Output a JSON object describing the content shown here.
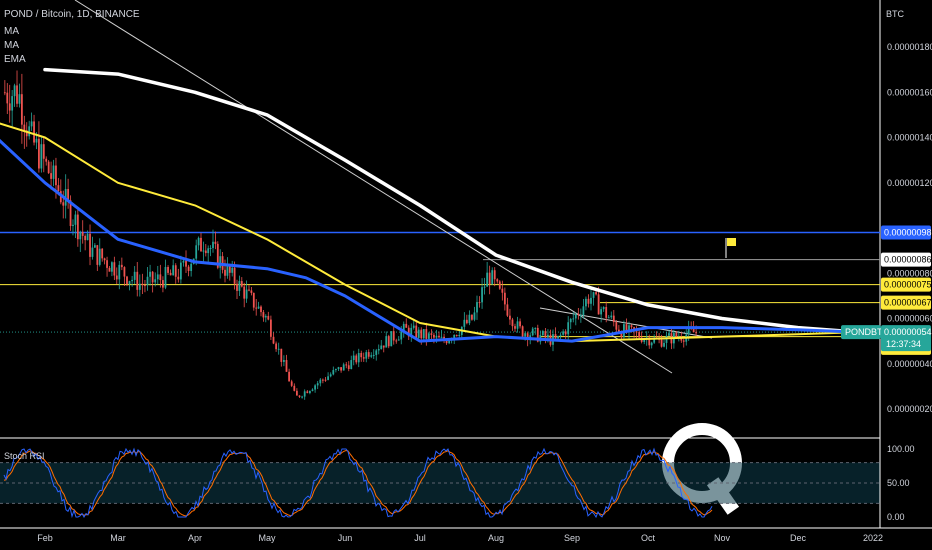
{
  "header": {
    "title": "POND / Bitcoin, 1D, BINANCE",
    "indicators": [
      "MA",
      "MA",
      "EMA"
    ],
    "currency": "BTC"
  },
  "watermark_letter": "Q",
  "colors": {
    "background": "#000000",
    "candle_up": "#26a69a",
    "candle_down": "#ef5350",
    "ma_white": "#ffffff",
    "ma_yellow": "#ffeb3b",
    "ema_blue": "#2962ff",
    "level_blue": "#2962ff",
    "level_yellow": "#ffeb3b",
    "stoch_k": "#2962ff",
    "stoch_d": "#ff6d00",
    "stoch_band": "#0d3c4a",
    "flag": "#ffeb3b"
  },
  "price_axis": {
    "ticks": [
      "0.00000180",
      "0.00000160",
      "0.00000140",
      "0.00000120",
      "0.00000080",
      "0.00000060",
      "0.00000040",
      "0.00000020"
    ],
    "tick_values": [
      1.8e-06,
      1.6e-06,
      1.4e-06,
      1.2e-06,
      8e-07,
      6e-07,
      4e-07,
      2e-07
    ],
    "badges": [
      {
        "text": "0.00000098",
        "value": 9.8e-07,
        "style": "blue"
      },
      {
        "text": "0.00000086",
        "value": 8.6e-07,
        "style": "white"
      },
      {
        "text": "0.00000075",
        "value": 7.5e-07,
        "style": "yellow"
      },
      {
        "text": "0.00000067",
        "value": 6.7e-07,
        "style": "yellow"
      },
      {
        "text": "0.00000052",
        "value": 5.2e-07,
        "style": "yellow"
      },
      {
        "text": "0.00000047",
        "value": 4.7e-07,
        "style": "yellow"
      }
    ],
    "last_price": {
      "symbol": "PONDBTC",
      "price": "0.00000054",
      "countdown": "12:37:34",
      "value": 5.4e-07
    }
  },
  "stoch_panel": {
    "label": "Stoch RSI",
    "ticks": [
      "100.00",
      "50.00",
      "0.00"
    ],
    "tick_values": [
      100,
      50,
      0
    ],
    "band": [
      20,
      80
    ]
  },
  "time_axis": {
    "labels": [
      "Feb",
      "Mar",
      "Apr",
      "May",
      "Jun",
      "Jul",
      "Aug",
      "Sep",
      "Oct",
      "Nov",
      "Dec",
      "2022"
    ]
  },
  "chart_data": {
    "type": "candlestick",
    "symbol": "POND / Bitcoin",
    "timeframe": "1D",
    "exchange": "BINANCE",
    "y_range": [
      8e-08,
      1.9e-06
    ],
    "horizontal_levels": [
      9.8e-07,
      8.6e-07,
      7.5e-07,
      6.7e-07,
      5.2e-07,
      4.7e-07
    ],
    "last_price": 5.4e-07,
    "approx_close_path": [
      {
        "date": "2021-01-20",
        "close": 1.6e-06
      },
      {
        "date": "2021-01-25",
        "close": 1.4e-06
      },
      {
        "date": "2021-02-05",
        "close": 1.2e-06
      },
      {
        "date": "2021-02-20",
        "close": 9e-07
      },
      {
        "date": "2021-03-10",
        "close": 7.5e-07
      },
      {
        "date": "2021-03-25",
        "close": 8e-07
      },
      {
        "date": "2021-04-05",
        "close": 9.5e-07
      },
      {
        "date": "2021-04-15",
        "close": 8e-07
      },
      {
        "date": "2021-05-01",
        "close": 6e-07
      },
      {
        "date": "2021-05-12",
        "close": 2.5e-07
      },
      {
        "date": "2021-05-25",
        "close": 3.5e-07
      },
      {
        "date": "2021-06-10",
        "close": 4.5e-07
      },
      {
        "date": "2021-06-25",
        "close": 5.5e-07
      },
      {
        "date": "2021-07-10",
        "close": 5e-07
      },
      {
        "date": "2021-07-22",
        "close": 6e-07
      },
      {
        "date": "2021-07-28",
        "close": 8e-07
      },
      {
        "date": "2021-08-10",
        "close": 5.5e-07
      },
      {
        "date": "2021-08-25",
        "close": 5e-07
      },
      {
        "date": "2021-09-08",
        "close": 7e-07
      },
      {
        "date": "2021-09-20",
        "close": 5.5e-07
      },
      {
        "date": "2021-10-05",
        "close": 5e-07
      },
      {
        "date": "2021-10-20",
        "close": 5.4e-07
      }
    ],
    "series": [
      {
        "name": "MA",
        "color": "#ffffff",
        "values": [
          [
            1,
            1.7e-06
          ],
          [
            2,
            1.68e-06
          ],
          [
            3,
            1.6e-06
          ],
          [
            4,
            1.5e-06
          ],
          [
            5,
            1.3e-06
          ],
          [
            6,
            1.1e-06
          ],
          [
            7,
            8.8e-07
          ],
          [
            8,
            7.6e-07
          ],
          [
            9,
            6.6e-07
          ],
          [
            10,
            6e-07
          ],
          [
            11,
            5.6e-07
          ],
          [
            11.8,
            5.4e-07
          ]
        ]
      },
      {
        "name": "MA",
        "color": "#ffeb3b",
        "values": [
          [
            0,
            1.5e-06
          ],
          [
            1,
            1.4e-06
          ],
          [
            2,
            1.2e-06
          ],
          [
            3,
            1.1e-06
          ],
          [
            4,
            9.5e-07
          ],
          [
            5,
            7.5e-07
          ],
          [
            6,
            5.8e-07
          ],
          [
            7,
            5.2e-07
          ],
          [
            8,
            5e-07
          ],
          [
            9,
            5.1e-07
          ],
          [
            10,
            5.2e-07
          ],
          [
            11,
            5.3e-07
          ],
          [
            11.8,
            5.4e-07
          ]
        ]
      },
      {
        "name": "EMA",
        "color": "#2962ff",
        "values": [
          [
            0,
            1.5e-06
          ],
          [
            1,
            1.2e-06
          ],
          [
            2,
            9.5e-07
          ],
          [
            3,
            8.5e-07
          ],
          [
            4,
            8.2e-07
          ],
          [
            4.5,
            7.8e-07
          ],
          [
            5,
            7e-07
          ],
          [
            6,
            5e-07
          ],
          [
            7,
            5.2e-07
          ],
          [
            8,
            5e-07
          ],
          [
            9,
            5.6e-07
          ],
          [
            10,
            5.6e-07
          ],
          [
            11,
            5.5e-07
          ],
          [
            11.8,
            5.4e-07
          ]
        ]
      }
    ],
    "stoch_rsi": {
      "range": [
        0,
        100
      ],
      "band": [
        20,
        80
      ]
    }
  }
}
